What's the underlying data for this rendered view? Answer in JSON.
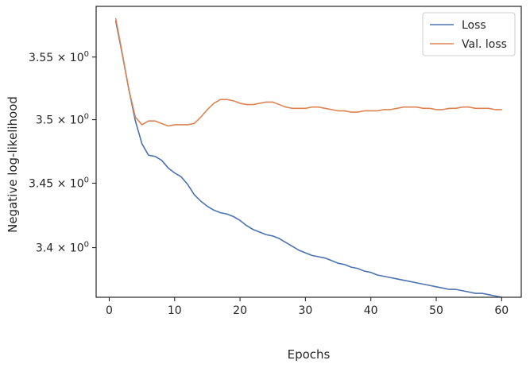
{
  "chart_data": {
    "type": "line",
    "xlabel": "Epochs",
    "ylabel": "Negative log-likelihood",
    "yscale": "log",
    "xlim": [
      -2,
      63
    ],
    "ylim": [
      3.362,
      3.591
    ],
    "x_ticks": [
      0,
      10,
      20,
      30,
      40,
      50,
      60
    ],
    "x_tick_labels": [
      "0",
      "10",
      "20",
      "30",
      "40",
      "50",
      "60"
    ],
    "y_ticks": [
      {
        "value": 3.55,
        "mantissa": "3.55",
        "exponent": "0"
      },
      {
        "value": 3.5,
        "mantissa": "3.5",
        "exponent": "0"
      },
      {
        "value": 3.45,
        "mantissa": "3.45",
        "exponent": "0"
      },
      {
        "value": 3.4,
        "mantissa": "3.4",
        "exponent": "0"
      }
    ],
    "grid": false,
    "legend_position": "top-right",
    "series": [
      {
        "name": "Loss",
        "color": "#4c72b0",
        "x": [
          1,
          2,
          3,
          4,
          5,
          6,
          7,
          8,
          9,
          10,
          11,
          12,
          13,
          14,
          15,
          16,
          17,
          18,
          19,
          20,
          21,
          22,
          23,
          24,
          25,
          26,
          27,
          28,
          29,
          30,
          31,
          32,
          33,
          34,
          35,
          36,
          37,
          38,
          39,
          40,
          41,
          42,
          43,
          44,
          45,
          46,
          47,
          48,
          49,
          50,
          51,
          52,
          53,
          54,
          55,
          56,
          57,
          58,
          59,
          60
        ],
        "values": [
          3.579,
          3.552,
          3.524,
          3.499,
          3.481,
          3.472,
          3.471,
          3.468,
          3.462,
          3.458,
          3.455,
          3.449,
          3.441,
          3.436,
          3.432,
          3.429,
          3.427,
          3.426,
          3.424,
          3.421,
          3.417,
          3.414,
          3.412,
          3.41,
          3.409,
          3.407,
          3.404,
          3.401,
          3.398,
          3.396,
          3.394,
          3.393,
          3.392,
          3.39,
          3.388,
          3.387,
          3.385,
          3.384,
          3.382,
          3.381,
          3.379,
          3.378,
          3.377,
          3.376,
          3.375,
          3.374,
          3.373,
          3.372,
          3.371,
          3.37,
          3.369,
          3.368,
          3.368,
          3.367,
          3.366,
          3.365,
          3.365,
          3.364,
          3.363,
          3.362
        ]
      },
      {
        "name": "Val. loss",
        "color": "#dd8452",
        "x": [
          1,
          2,
          3,
          4,
          5,
          6,
          7,
          8,
          9,
          10,
          11,
          12,
          13,
          14,
          15,
          16,
          17,
          18,
          19,
          20,
          21,
          22,
          23,
          24,
          25,
          26,
          27,
          28,
          29,
          30,
          31,
          32,
          33,
          34,
          35,
          36,
          37,
          38,
          39,
          40,
          41,
          42,
          43,
          44,
          45,
          46,
          47,
          48,
          49,
          50,
          51,
          52,
          53,
          54,
          55,
          56,
          57,
          58,
          59,
          60
        ],
        "values": [
          3.581,
          3.553,
          3.524,
          3.502,
          3.496,
          3.499,
          3.499,
          3.497,
          3.495,
          3.496,
          3.496,
          3.496,
          3.497,
          3.502,
          3.508,
          3.513,
          3.516,
          3.516,
          3.515,
          3.513,
          3.512,
          3.512,
          3.513,
          3.514,
          3.514,
          3.512,
          3.51,
          3.509,
          3.509,
          3.509,
          3.51,
          3.51,
          3.509,
          3.508,
          3.507,
          3.507,
          3.506,
          3.506,
          3.507,
          3.507,
          3.507,
          3.508,
          3.508,
          3.509,
          3.51,
          3.51,
          3.51,
          3.509,
          3.509,
          3.508,
          3.508,
          3.509,
          3.509,
          3.51,
          3.51,
          3.509,
          3.509,
          3.509,
          3.508,
          3.508
        ]
      }
    ]
  }
}
